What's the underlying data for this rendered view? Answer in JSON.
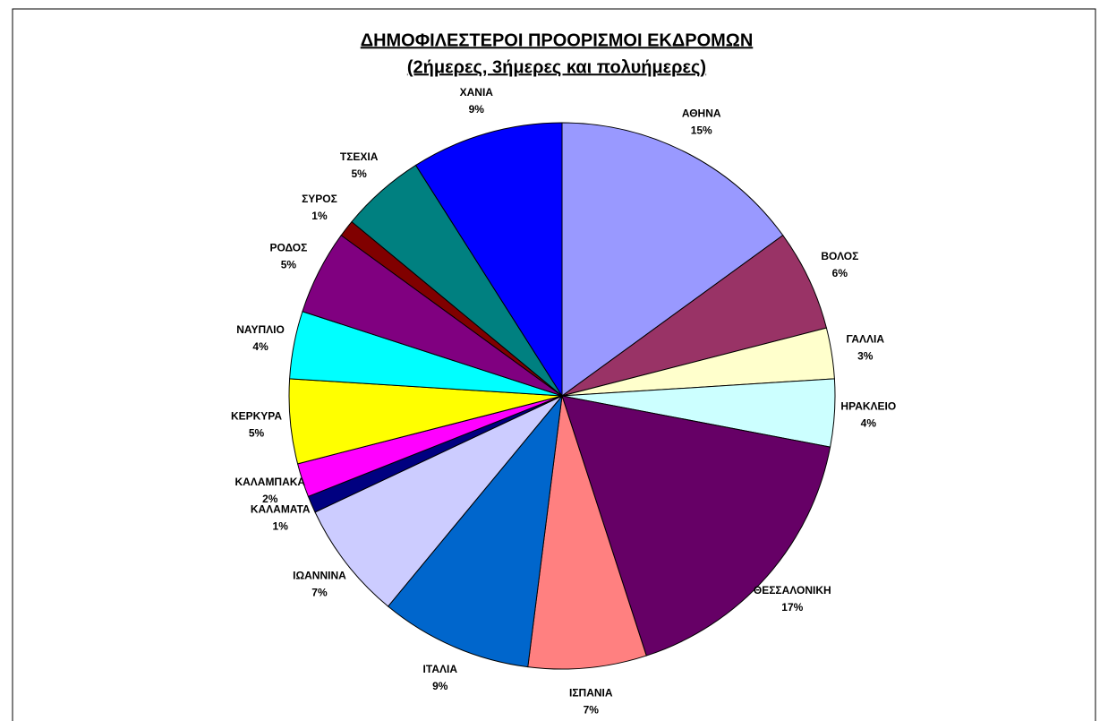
{
  "chart_data": {
    "type": "pie",
    "title": "ΔΗΜΟΦΙΛΕΣΤΕΡΟΙ ΠΡΟΟΡΙΣΜΟΙ ΕΚΔΡΟΜΩΝ",
    "subtitle": "(2ήμερες, 3ήμερες και πολυήμερες)",
    "categories": [
      "ΑΘΗΝΑ",
      "ΒΟΛΟΣ",
      "ΓΑΛΛΙΑ",
      "ΗΡΑΚΛΕΙΟ",
      "ΘΕΣΣΑΛΟΝΙΚΗ",
      "ΙΣΠΑΝΙΑ",
      "ΙΤΑΛΙΑ",
      "ΙΩΑΝΝΙΝΑ",
      "ΚΑΛΑΜΑΤΑ",
      "ΚΑΛΑΜΠΑΚΑ",
      "ΚΕΡΚΥΡΑ",
      "ΝΑΥΠΛΙΟ",
      "ΡΟΔΟΣ",
      "ΣΥΡΟΣ",
      "ΤΣΕΧΙΑ",
      "ΧΑΝΙΑ"
    ],
    "values": [
      15,
      6,
      3,
      4,
      17,
      7,
      9,
      7,
      1,
      2,
      5,
      4,
      5,
      1,
      5,
      9
    ],
    "value_labels": [
      "15%",
      "6%",
      "3%",
      "4%",
      "17%",
      "7%",
      "9%",
      "7%",
      "1%",
      "2%",
      "5%",
      "4%",
      "5%",
      "1%",
      "5%",
      "9%"
    ],
    "colors": [
      "#9999ff",
      "#993366",
      "#ffffcc",
      "#ccffff",
      "#660066",
      "#ff8080",
      "#0066cc",
      "#ccccff",
      "#000080",
      "#ff00ff",
      "#ffff00",
      "#00ffff",
      "#800080",
      "#800000",
      "#008080",
      "#0000ff"
    ]
  }
}
